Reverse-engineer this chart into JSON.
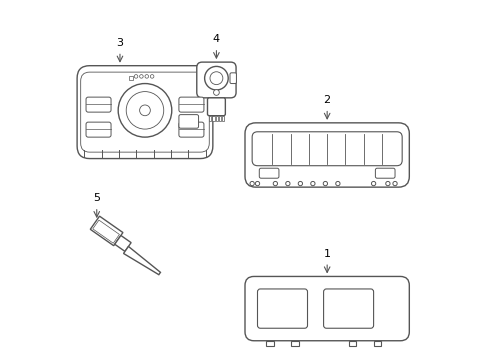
{
  "bg_color": "#ffffff",
  "line_color": "#555555",
  "lw": 1.0
}
